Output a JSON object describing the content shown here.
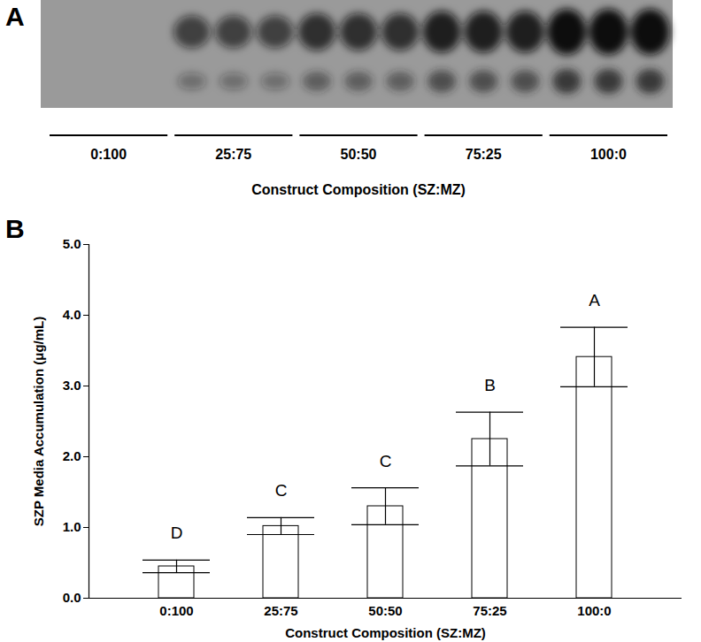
{
  "blot": {
    "label": "A",
    "groups": [
      "0:100",
      "25:75",
      "50:50",
      "75:25",
      "100:0"
    ],
    "xlabel": "Construct Composition (SZ:MZ)"
  },
  "chart_data": {
    "type": "bar",
    "title": "B",
    "categories": [
      "0:100",
      "25:75",
      "50:50",
      "75:25",
      "100:0"
    ],
    "values": [
      0.45,
      1.02,
      1.3,
      2.25,
      3.41
    ],
    "errors": [
      0.09,
      0.12,
      0.26,
      0.38,
      0.42
    ],
    "annotations": [
      "D",
      "C",
      "C",
      "B",
      "A"
    ],
    "color": "#ffffff",
    "x_label": "Construct Composition (SZ:MZ)",
    "y_label": "SZP Media Accumulation (μg/mL)",
    "ylim": [
      0,
      5
    ],
    "yticks": [
      0,
      1,
      2,
      3,
      4,
      5
    ],
    "grid": false
  }
}
